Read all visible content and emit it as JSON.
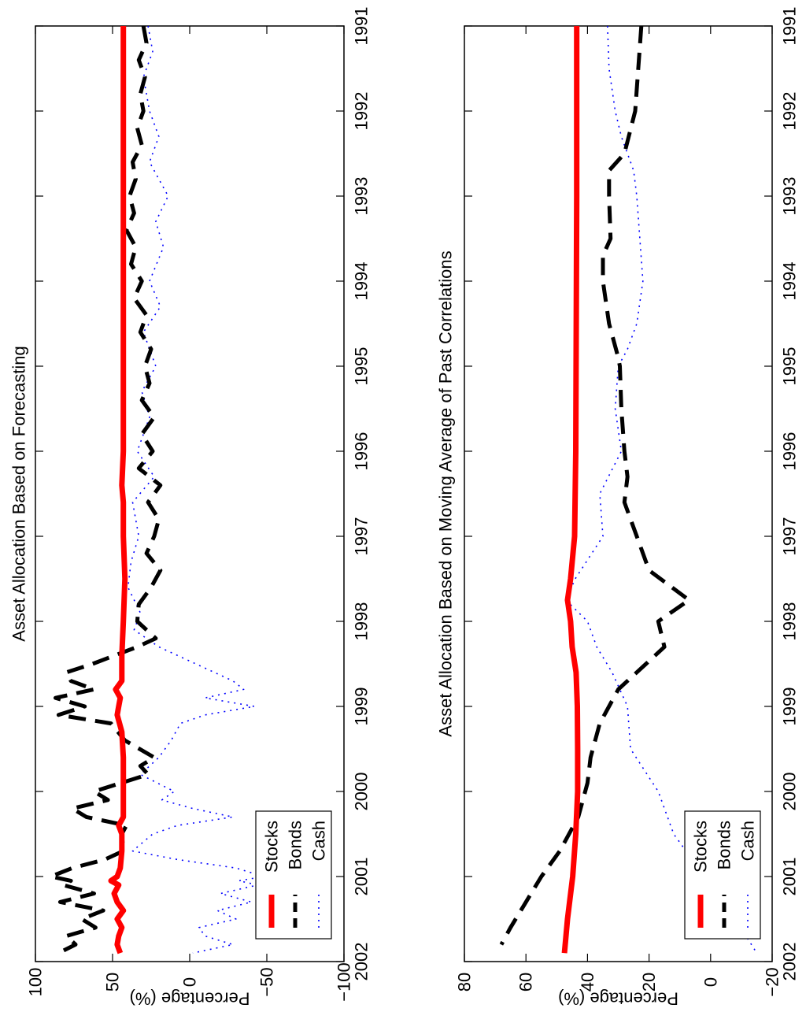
{
  "chart_data": [
    {
      "type": "line",
      "title": "Asset Allocation Based on Forecasting",
      "xlabel": "",
      "ylabel": "Percentage (%)",
      "xlim": [
        1991,
        2002
      ],
      "ylim": [
        -100,
        100
      ],
      "xticks": [
        1991,
        1992,
        1993,
        1994,
        1995,
        1996,
        1997,
        1998,
        1999,
        2000,
        2001,
        2002
      ],
      "yticks": [
        100,
        50,
        0,
        -50,
        -100
      ],
      "ytick_labels": [
        "100",
        "50",
        "0",
        "−50",
        "−100"
      ],
      "legend_position": "lower-left",
      "series": [
        {
          "name": "Stocks",
          "color": "#ff0000",
          "style": "solid",
          "x": [
            1991.0,
            1991.5,
            1992.0,
            1992.5,
            1993.0,
            1993.5,
            1994.0,
            1994.5,
            1995.0,
            1995.5,
            1996.0,
            1996.4,
            1996.6,
            1997.0,
            1997.5,
            1998.0,
            1998.4,
            1998.7,
            1998.8,
            1998.9,
            1999.0,
            1999.1,
            1999.3,
            1999.6,
            2000.0,
            2000.3,
            2000.4,
            2000.5,
            2000.7,
            2000.9,
            2001.0,
            2001.05,
            2001.1,
            2001.2,
            2001.3,
            2001.4,
            2001.5,
            2001.6,
            2001.7,
            2001.8,
            2001.9
          ],
          "y": [
            43,
            43,
            43,
            43,
            43,
            43,
            43,
            43,
            43,
            43,
            43,
            44,
            43,
            43,
            42,
            43,
            44,
            44,
            48,
            45,
            46,
            47,
            44,
            43,
            43,
            43,
            46,
            44,
            44,
            45,
            47,
            51,
            46,
            49,
            47,
            43,
            47,
            44,
            46,
            47,
            45
          ]
        },
        {
          "name": "Bonds",
          "color": "#000000",
          "style": "dashed",
          "x": [
            1991.0,
            1991.2,
            1991.4,
            1991.6,
            1991.8,
            1992.0,
            1992.2,
            1992.4,
            1992.6,
            1992.8,
            1993.0,
            1993.2,
            1993.4,
            1993.6,
            1993.8,
            1994.0,
            1994.2,
            1994.4,
            1994.6,
            1994.8,
            1995.0,
            1995.2,
            1995.4,
            1995.6,
            1995.8,
            1996.0,
            1996.2,
            1996.4,
            1996.6,
            1996.8,
            1997.0,
            1997.2,
            1997.4,
            1997.6,
            1997.8,
            1998.0,
            1998.2,
            1998.3,
            1998.5,
            1998.6,
            1998.7,
            1998.8,
            1998.9,
            1999.0,
            1999.1,
            1999.2,
            1999.4,
            1999.6,
            1999.7,
            1999.8,
            2000.0,
            2000.1,
            2000.2,
            2000.3,
            2000.4,
            2000.5,
            2000.7,
            2000.8,
            2000.9,
            2001.0,
            2001.05,
            2001.1,
            2001.2,
            2001.3,
            2001.4,
            2001.5,
            2001.6,
            2001.7,
            2001.8,
            2001.9
          ],
          "y": [
            30,
            28,
            33,
            29,
            32,
            30,
            34,
            31,
            37,
            35,
            39,
            36,
            41,
            35,
            38,
            31,
            36,
            28,
            32,
            25,
            29,
            26,
            31,
            23,
            31,
            24,
            33,
            19,
            27,
            20,
            23,
            28,
            19,
            25,
            33,
            34,
            22,
            34,
            63,
            80,
            77,
            62,
            87,
            68,
            85,
            51,
            42,
            23,
            32,
            27,
            62,
            53,
            76,
            67,
            41,
            44,
            43,
            55,
            76,
            90,
            77,
            82,
            62,
            84,
            56,
            70,
            61,
            80,
            74,
            85
          ]
        },
        {
          "name": "Cash",
          "color": "#0000ff",
          "style": "dotted",
          "x": [
            1991.0,
            1991.3,
            1991.6,
            1992.0,
            1992.3,
            1992.6,
            1993.0,
            1993.3,
            1993.6,
            1994.0,
            1994.3,
            1994.6,
            1995.0,
            1995.3,
            1995.6,
            1996.0,
            1996.3,
            1996.6,
            1997.0,
            1997.3,
            1997.6,
            1997.9,
            1998.1,
            1998.3,
            1998.5,
            1998.7,
            1998.8,
            1998.9,
            1999.0,
            1999.1,
            1999.2,
            1999.4,
            1999.6,
            1999.8,
            2000.0,
            2000.1,
            2000.2,
            2000.3,
            2000.4,
            2000.5,
            2000.7,
            2000.8,
            2000.9,
            2001.0,
            2001.05,
            2001.1,
            2001.2,
            2001.3,
            2001.4,
            2001.5,
            2001.6,
            2001.7,
            2001.8,
            2001.9
          ],
          "y": [
            27,
            24,
            30,
            26,
            20,
            26,
            14,
            22,
            17,
            26,
            19,
            30,
            22,
            31,
            26,
            34,
            23,
            37,
            33,
            38,
            40,
            32,
            36,
            20,
            -4,
            -28,
            -35,
            -10,
            -42,
            -10,
            6,
            12,
            20,
            32,
            10,
            18,
            -2,
            -28,
            8,
            24,
            37,
            8,
            -30,
            -48,
            -32,
            -44,
            -20,
            -40,
            -18,
            -30,
            -6,
            -10,
            -28,
            -2
          ]
        }
      ]
    },
    {
      "type": "line",
      "title": "Asset Allocation Based on Moving Average of Past Correlations",
      "xlabel": "",
      "ylabel": "Percentage (%)",
      "xlim": [
        1991,
        2002
      ],
      "ylim": [
        -20,
        80
      ],
      "xticks": [
        1991,
        1992,
        1993,
        1994,
        1995,
        1996,
        1997,
        1998,
        1999,
        2000,
        2001,
        2002
      ],
      "yticks": [
        80,
        60,
        40,
        20,
        0,
        -20
      ],
      "ytick_labels": [
        "80",
        "60",
        "40",
        "20",
        "0",
        "−20"
      ],
      "legend_position": "lower-left",
      "series": [
        {
          "name": "Stocks",
          "color": "#ff0000",
          "style": "solid",
          "x": [
            1991,
            1992,
            1993,
            1994,
            1995,
            1996,
            1997,
            1997.5,
            1997.75,
            1998,
            1998.3,
            1998.6,
            1999,
            1999.5,
            2000,
            2000.5,
            2001,
            2001.5,
            2001.9
          ],
          "y": [
            43.5,
            43.5,
            43.5,
            43.6,
            43.7,
            43.8,
            44.2,
            45.5,
            46.5,
            45.5,
            45,
            43.7,
            43.3,
            43.2,
            43.2,
            43.8,
            44.8,
            46.5,
            47.5
          ]
        },
        {
          "name": "Bonds",
          "color": "#000000",
          "style": "dashed",
          "x": [
            1991,
            1991.5,
            1992,
            1992.5,
            1992.7,
            1993,
            1993.5,
            1993.7,
            1994,
            1994.5,
            1994.9,
            1995,
            1995.5,
            1996,
            1996.3,
            1996.6,
            1997,
            1997.4,
            1997.75,
            1998,
            1998.3,
            1998.5,
            1998.8,
            1999.2,
            1999.6,
            1999.9,
            2000.3,
            2000.7,
            2001,
            2001.3,
            2001.6,
            2001.8
          ],
          "y": [
            22.5,
            23.5,
            24.5,
            28,
            33,
            33,
            32.5,
            35,
            35,
            33,
            30,
            29.5,
            29,
            28,
            27,
            28,
            24,
            20,
            7,
            17,
            15,
            21,
            30,
            36,
            39,
            40,
            43,
            49,
            55,
            60,
            65,
            68
          ]
        },
        {
          "name": "Cash",
          "color": "#0000ff",
          "style": "dotted",
          "x": [
            1991,
            1991.5,
            1992,
            1992.3,
            1992.7,
            1993,
            1993.5,
            1994,
            1994.5,
            1994.8,
            1995,
            1995.5,
            1996,
            1996.5,
            1997,
            1997.5,
            1997.75,
            1998,
            1998.3,
            1998.6,
            1999,
            1999.5,
            2000,
            2000.5,
            2001,
            2001.5,
            2001.9
          ],
          "y": [
            33.5,
            33,
            31,
            29,
            25,
            24,
            23,
            22,
            24,
            27,
            30,
            31,
            29,
            36,
            35,
            44,
            47,
            40,
            37,
            32,
            27,
            26,
            17,
            12,
            2,
            -8,
            -15
          ]
        }
      ]
    }
  ]
}
